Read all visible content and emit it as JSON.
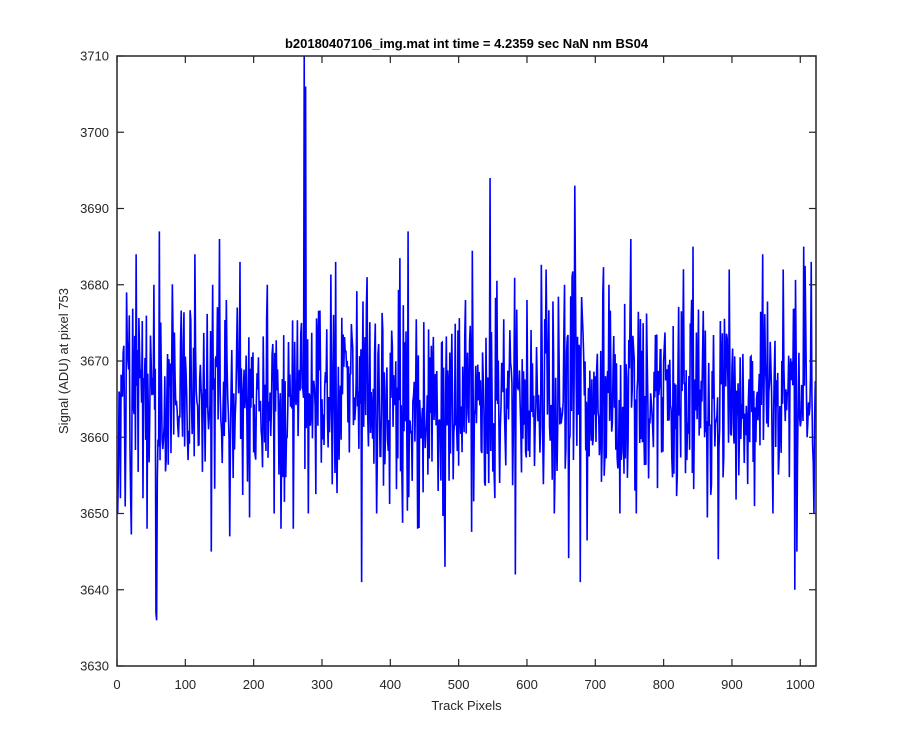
{
  "chart_data": {
    "type": "line",
    "title": "b20180407106_img.mat int time = 4.2359 sec  NaN nm BS04",
    "xlabel": "Track Pixels",
    "ylabel": "Signal (ADU) at pixel 753",
    "xlim": [
      0,
      1023
    ],
    "ylim": [
      3630,
      3710
    ],
    "xticks": [
      0,
      100,
      200,
      300,
      400,
      500,
      600,
      700,
      800,
      900,
      1000
    ],
    "yticks": [
      3630,
      3640,
      3650,
      3660,
      3670,
      3680,
      3690,
      3700,
      3710
    ],
    "grid": false,
    "legend": "none",
    "line_color": "#0000ff",
    "series": [
      {
        "x_start": 1,
        "x_step": 1,
        "noise_mean": 3665,
        "noise_std": 6.5,
        "n_points": 1023,
        "values_sparse": [
          [
            1,
            3650
          ],
          [
            3,
            3666
          ],
          [
            5,
            3652
          ],
          [
            10,
            3672
          ],
          [
            14,
            3679
          ],
          [
            20,
            3652
          ],
          [
            28,
            3684
          ],
          [
            38,
            3652
          ],
          [
            44,
            3648
          ],
          [
            50,
            3670
          ],
          [
            54,
            3680
          ],
          [
            57,
            3637
          ],
          [
            58,
            3636
          ],
          [
            62,
            3687
          ],
          [
            70,
            3668
          ],
          [
            90,
            3660
          ],
          [
            114,
            3684
          ],
          [
            120,
            3659
          ],
          [
            138,
            3645
          ],
          [
            140,
            3680
          ],
          [
            150,
            3686
          ],
          [
            160,
            3678
          ],
          [
            165,
            3647
          ],
          [
            180,
            3683
          ],
          [
            200,
            3658
          ],
          [
            220,
            3680
          ],
          [
            240,
            3648
          ],
          [
            258,
            3648
          ],
          [
            270,
            3675
          ],
          [
            274,
            3710
          ],
          [
            276,
            3706
          ],
          [
            280,
            3650
          ],
          [
            300,
            3665
          ],
          [
            320,
            3683
          ],
          [
            340,
            3658
          ],
          [
            358,
            3641
          ],
          [
            366,
            3681
          ],
          [
            380,
            3650
          ],
          [
            402,
            3674
          ],
          [
            426,
            3687
          ],
          [
            440,
            3648
          ],
          [
            460,
            3672
          ],
          [
            480,
            3643
          ],
          [
            510,
            3678
          ],
          [
            546,
            3694
          ],
          [
            560,
            3654
          ],
          [
            583,
            3642
          ],
          [
            600,
            3678
          ],
          [
            613,
            3664
          ],
          [
            628,
            3682
          ],
          [
            640,
            3650
          ],
          [
            655,
            3680
          ],
          [
            666,
            3681
          ],
          [
            670,
            3693
          ],
          [
            678,
            3641
          ],
          [
            700,
            3668
          ],
          [
            720,
            3680
          ],
          [
            736,
            3650
          ],
          [
            752,
            3686
          ],
          [
            760,
            3650
          ],
          [
            776,
            3670
          ],
          [
            800,
            3670
          ],
          [
            820,
            3655
          ],
          [
            843,
            3685
          ],
          [
            860,
            3660
          ],
          [
            880,
            3644
          ],
          [
            896,
            3682
          ],
          [
            910,
            3655
          ],
          [
            930,
            3670
          ],
          [
            945,
            3684
          ],
          [
            960,
            3650
          ],
          [
            975,
            3682
          ],
          [
            992,
            3640
          ],
          [
            995,
            3645
          ],
          [
            1005,
            3685
          ],
          [
            1010,
            3660
          ],
          [
            1016,
            3683
          ],
          [
            1020,
            3650
          ]
        ]
      }
    ]
  }
}
